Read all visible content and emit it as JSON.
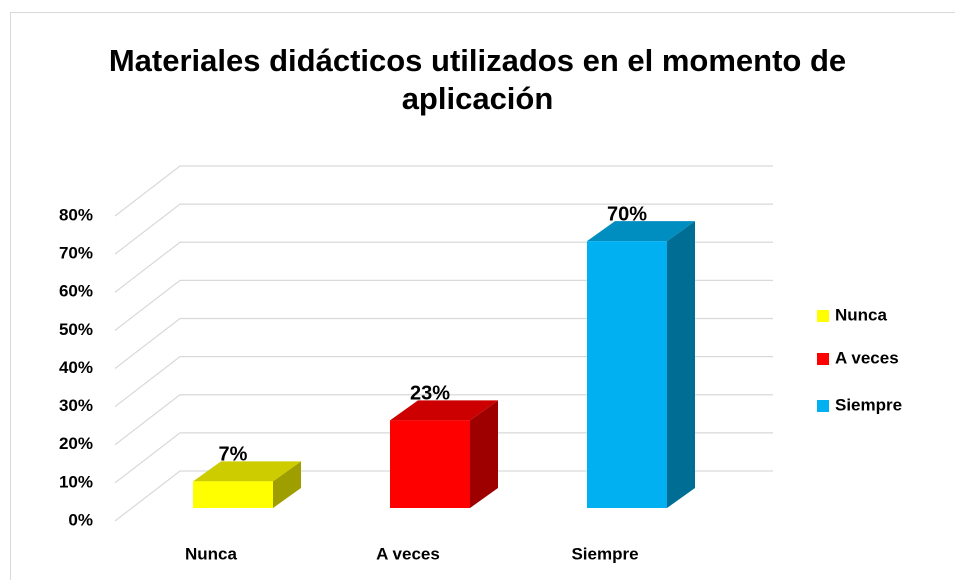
{
  "chart_data": {
    "type": "bar3d",
    "title": "Materiales didácticos utilizados en el momento de aplicación",
    "categories": [
      "Nunca",
      "A veces",
      "Siempre"
    ],
    "values": [
      7,
      23,
      70
    ],
    "value_labels": [
      "7%",
      "23%",
      "70%"
    ],
    "colors": [
      "#ffff00",
      "#ff0000",
      "#00b0f0"
    ],
    "ylim": [
      0,
      80
    ],
    "yticks": [
      {
        "value": 0,
        "label": "0%"
      },
      {
        "value": 10,
        "label": "10%"
      },
      {
        "value": 20,
        "label": "20%"
      },
      {
        "value": 30,
        "label": "30%"
      },
      {
        "value": 40,
        "label": "40%"
      },
      {
        "value": 50,
        "label": "50%"
      },
      {
        "value": 60,
        "label": "60%"
      },
      {
        "value": 70,
        "label": "70%"
      },
      {
        "value": 80,
        "label": "80%"
      }
    ],
    "grid": true,
    "legend": "right"
  }
}
